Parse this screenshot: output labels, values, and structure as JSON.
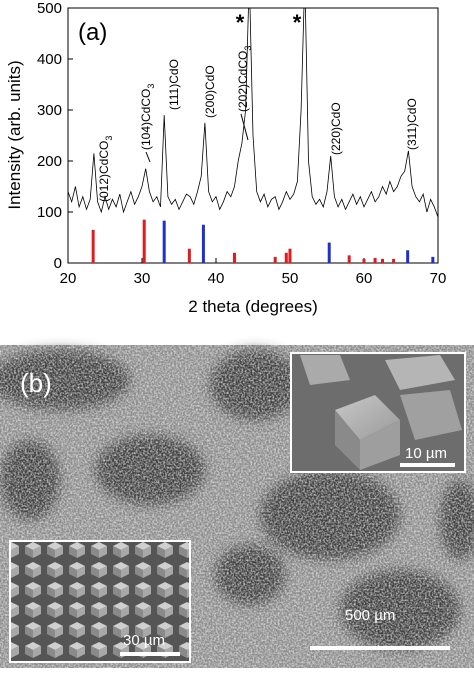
{
  "chart_data": {
    "type": "line",
    "panel_label": "(a)",
    "xlabel": "2 theta (degrees)",
    "ylabel": "Intensity (arb. units)",
    "xlim": [
      20,
      70
    ],
    "ylim": [
      0,
      500
    ],
    "xticks": [
      20,
      30,
      40,
      50,
      60,
      70
    ],
    "yticks": [
      0,
      100,
      200,
      300,
      400,
      500
    ],
    "series": [
      {
        "type": "line",
        "color": "#000000",
        "x": [
          20,
          20.5,
          21,
          21.5,
          22,
          22.5,
          23,
          23.5,
          24,
          24.5,
          25,
          25.5,
          26,
          26.5,
          27,
          27.5,
          28,
          28.5,
          29,
          29.5,
          30,
          30.5,
          31,
          31.5,
          32,
          32.5,
          33,
          33.5,
          34,
          34.5,
          35,
          35.5,
          36,
          36.5,
          37,
          37.5,
          38,
          38.5,
          39,
          39.5,
          40,
          40.5,
          41,
          41.5,
          42,
          42.5,
          43,
          43.5,
          44,
          44.5,
          45,
          45.5,
          46,
          46.5,
          47,
          47.5,
          48,
          48.5,
          49,
          49.5,
          50,
          50.5,
          51,
          51.5,
          52,
          52.5,
          53,
          53.5,
          54,
          54.5,
          55,
          55.5,
          56,
          56.5,
          57,
          57.5,
          58,
          58.5,
          59,
          59.5,
          60,
          60.5,
          61,
          61.5,
          62,
          62.5,
          63,
          63.5,
          64,
          64.5,
          65,
          65.5,
          66,
          66.5,
          67,
          67.5,
          68,
          68.5,
          69,
          69.5,
          70
        ],
        "values": [
          140,
          120,
          150,
          110,
          130,
          105,
          125,
          215,
          120,
          100,
          130,
          105,
          125,
          110,
          135,
          100,
          120,
          140,
          115,
          130,
          150,
          185,
          140,
          120,
          130,
          110,
          290,
          130,
          115,
          125,
          105,
          120,
          135,
          130,
          115,
          140,
          170,
          275,
          140,
          120,
          130,
          105,
          120,
          140,
          130,
          150,
          200,
          235,
          300,
          560,
          250,
          140,
          120,
          135,
          110,
          125,
          130,
          105,
          120,
          140,
          125,
          135,
          160,
          300,
          560,
          200,
          130,
          115,
          125,
          110,
          140,
          210,
          130,
          110,
          125,
          105,
          120,
          135,
          115,
          130,
          110,
          125,
          140,
          120,
          130,
          150,
          135,
          160,
          140,
          150,
          170,
          180,
          220,
          150,
          130,
          120,
          135,
          100,
          125,
          110,
          90
        ]
      },
      {
        "type": "stick",
        "color": "#e8191d",
        "x": [
          23.4,
          30.3,
          36.4,
          42.5,
          48.0,
          49.5,
          50.0,
          58.0,
          60.0,
          61.5,
          62.5,
          64.0
        ],
        "values": [
          65,
          85,
          28,
          20,
          12,
          20,
          28,
          15,
          8,
          10,
          8,
          8
        ]
      },
      {
        "type": "stick",
        "color": "#1f2fd0",
        "x": [
          33.0,
          38.3,
          55.3,
          65.9,
          69.3
        ],
        "values": [
          83,
          75,
          40,
          25,
          12
        ]
      }
    ],
    "annotations": [
      [
        "(012)",
        "CdCO",
        "3"
      ],
      [
        "(104)",
        "CdCO",
        "3"
      ],
      [
        "(111)",
        "CdO"
      ],
      [
        "(200)",
        "CdO"
      ],
      [
        "(202)",
        "CdCO",
        "3"
      ],
      [
        "(220)",
        "CdO"
      ],
      [
        "(311)",
        "CdO"
      ]
    ],
    "markers": [
      "*",
      "*"
    ]
  },
  "image": {
    "panel_label": "(b)",
    "scale_bars": [
      "500 µm",
      "10 µm",
      "30 µm"
    ]
  }
}
